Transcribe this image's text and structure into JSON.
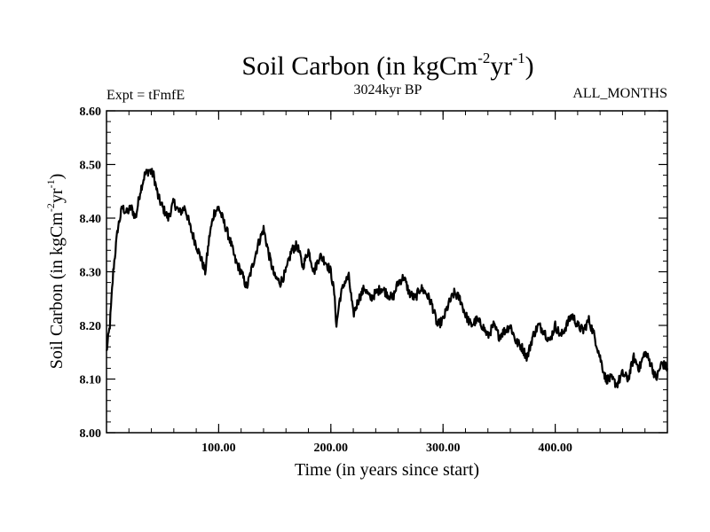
{
  "chart_data": {
    "type": "line",
    "title": {
      "base": "Soil Carbon (in kgCm",
      "sup1": "-2",
      "mid": "yr",
      "sup2": "-1",
      "end": ")"
    },
    "experiment": "Expt = tFmfE",
    "subtitle": "3024kyr BP",
    "period": "ALL_MONTHS",
    "xlabel": "Time (in years since start)",
    "ylabel": {
      "base": "Soil Carbon (in kgCm",
      "sup1": "-2",
      "mid": "yr",
      "sup2": "-1",
      "end": ")"
    },
    "xlim": [
      0,
      500
    ],
    "ylim": [
      8.0,
      8.6
    ],
    "x_ticks": [
      100,
      200,
      300,
      400
    ],
    "x_tick_labels": [
      "100.00",
      "200.00",
      "300.00",
      "400.00"
    ],
    "y_ticks": [
      8.0,
      8.1,
      8.2,
      8.3,
      8.4,
      8.5,
      8.6
    ],
    "y_tick_labels": [
      "8.00",
      "8.10",
      "8.20",
      "8.30",
      "8.40",
      "8.50",
      "8.60"
    ],
    "series": [
      {
        "name": "Soil Carbon",
        "color": "#000000",
        "x": [
          0,
          3,
          6,
          10,
          14,
          18,
          22,
          26,
          30,
          34,
          38,
          42,
          46,
          50,
          55,
          60,
          65,
          70,
          75,
          80,
          85,
          88,
          92,
          96,
          100,
          105,
          110,
          115,
          120,
          125,
          130,
          135,
          140,
          145,
          150,
          155,
          160,
          165,
          170,
          175,
          180,
          185,
          190,
          195,
          200,
          203,
          205,
          208,
          212,
          216,
          220,
          225,
          230,
          235,
          240,
          245,
          250,
          255,
          260,
          265,
          270,
          275,
          280,
          285,
          290,
          295,
          300,
          305,
          310,
          315,
          320,
          325,
          330,
          335,
          340,
          345,
          350,
          355,
          360,
          365,
          370,
          375,
          380,
          385,
          390,
          395,
          400,
          405,
          410,
          415,
          420,
          425,
          430,
          435,
          440,
          445,
          450,
          455,
          460,
          465,
          470,
          475,
          480,
          485,
          490,
          495,
          500
        ],
        "values": [
          8.15,
          8.2,
          8.3,
          8.38,
          8.42,
          8.41,
          8.42,
          8.4,
          8.45,
          8.48,
          8.49,
          8.48,
          8.44,
          8.42,
          8.4,
          8.43,
          8.41,
          8.42,
          8.38,
          8.35,
          8.32,
          8.3,
          8.37,
          8.41,
          8.42,
          8.39,
          8.36,
          8.32,
          8.3,
          8.27,
          8.31,
          8.35,
          8.38,
          8.33,
          8.29,
          8.28,
          8.3,
          8.34,
          8.35,
          8.31,
          8.34,
          8.3,
          8.33,
          8.32,
          8.3,
          8.26,
          8.2,
          8.25,
          8.28,
          8.29,
          8.22,
          8.25,
          8.27,
          8.25,
          8.26,
          8.27,
          8.26,
          8.25,
          8.28,
          8.29,
          8.26,
          8.25,
          8.27,
          8.26,
          8.24,
          8.2,
          8.21,
          8.24,
          8.26,
          8.25,
          8.22,
          8.2,
          8.21,
          8.2,
          8.18,
          8.2,
          8.18,
          8.19,
          8.2,
          8.17,
          8.16,
          8.14,
          8.18,
          8.2,
          8.19,
          8.17,
          8.2,
          8.18,
          8.2,
          8.22,
          8.2,
          8.19,
          8.21,
          8.18,
          8.14,
          8.1,
          8.1,
          8.09,
          8.11,
          8.1,
          8.14,
          8.12,
          8.15,
          8.13,
          8.1,
          8.13,
          8.12
        ]
      }
    ]
  }
}
